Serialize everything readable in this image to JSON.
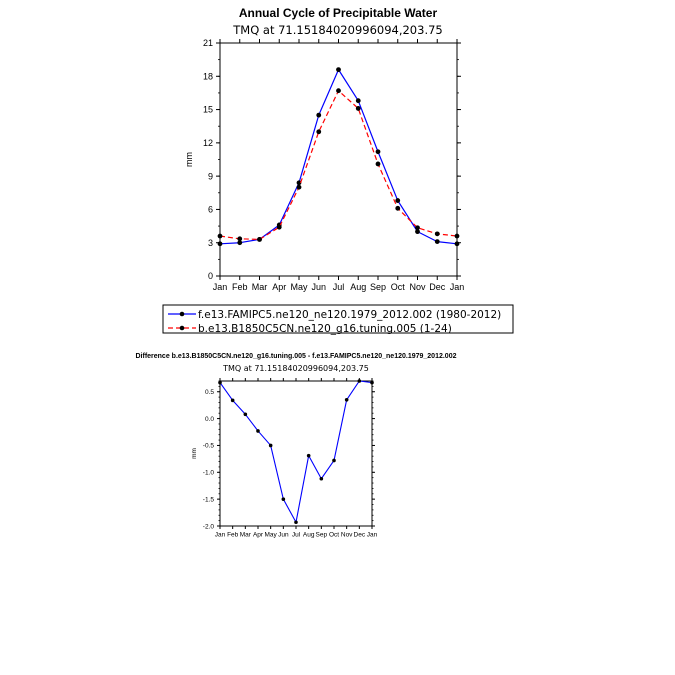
{
  "chart_data": [
    {
      "type": "line",
      "title": "Annual Cycle of Precipitable Water",
      "subtitle": "TMQ at 71.15184020996094,203.75",
      "ylabel": "mm",
      "xlabel": "",
      "ylim": [
        0,
        21
      ],
      "yticks": [
        0,
        3,
        6,
        9,
        12,
        15,
        18,
        21
      ],
      "categories": [
        "Jan",
        "Feb",
        "Mar",
        "Apr",
        "May",
        "Jun",
        "Jul",
        "Aug",
        "Sep",
        "Oct",
        "Nov",
        "Dec",
        "Jan"
      ],
      "grid": false,
      "legend_position": "below",
      "series": [
        {
          "name": "f.e13.FAMIPC5.ne120_ne120.1979_2012.002 (1980-2012)",
          "color": "#0000ff",
          "dash": "solid",
          "values": [
            2.9,
            3.0,
            3.3,
            4.6,
            8.4,
            14.5,
            18.6,
            15.8,
            11.2,
            6.8,
            4.0,
            3.1,
            2.9
          ]
        },
        {
          "name": "b.e13.B1850C5CN.ne120_g16.tuning.005 (1-24)",
          "color": "#ff0000",
          "dash": "dashed",
          "values": [
            3.6,
            3.35,
            3.3,
            4.4,
            8.0,
            13.0,
            16.7,
            15.1,
            10.1,
            6.1,
            4.35,
            3.8,
            3.6
          ]
        }
      ]
    },
    {
      "type": "line",
      "title": "Difference b.e13.B1850C5CN.ne120_g16.tuning.005 - f.e13.FAMIPC5.ne120_ne120.1979_2012.002",
      "subtitle": "TMQ at 71.15184020996094,203.75",
      "ylabel": "mm",
      "xlabel": "",
      "ylim": [
        -2.0,
        0.7
      ],
      "yticks": [
        -2.0,
        -1.5,
        -1.0,
        -0.5,
        0.0,
        0.5
      ],
      "categories": [
        "Jan",
        "Feb",
        "Mar",
        "Apr",
        "May",
        "Jun",
        "Jul",
        "Aug",
        "Sep",
        "Oct",
        "Nov",
        "Dec",
        "Jan"
      ],
      "grid": false,
      "series": [
        {
          "color": "#0000ff",
          "dash": "solid",
          "values": [
            0.67,
            0.34,
            0.08,
            -0.23,
            -0.5,
            -1.5,
            -1.93,
            -0.69,
            -1.12,
            -0.78,
            0.35,
            0.7,
            0.67
          ]
        }
      ]
    }
  ]
}
